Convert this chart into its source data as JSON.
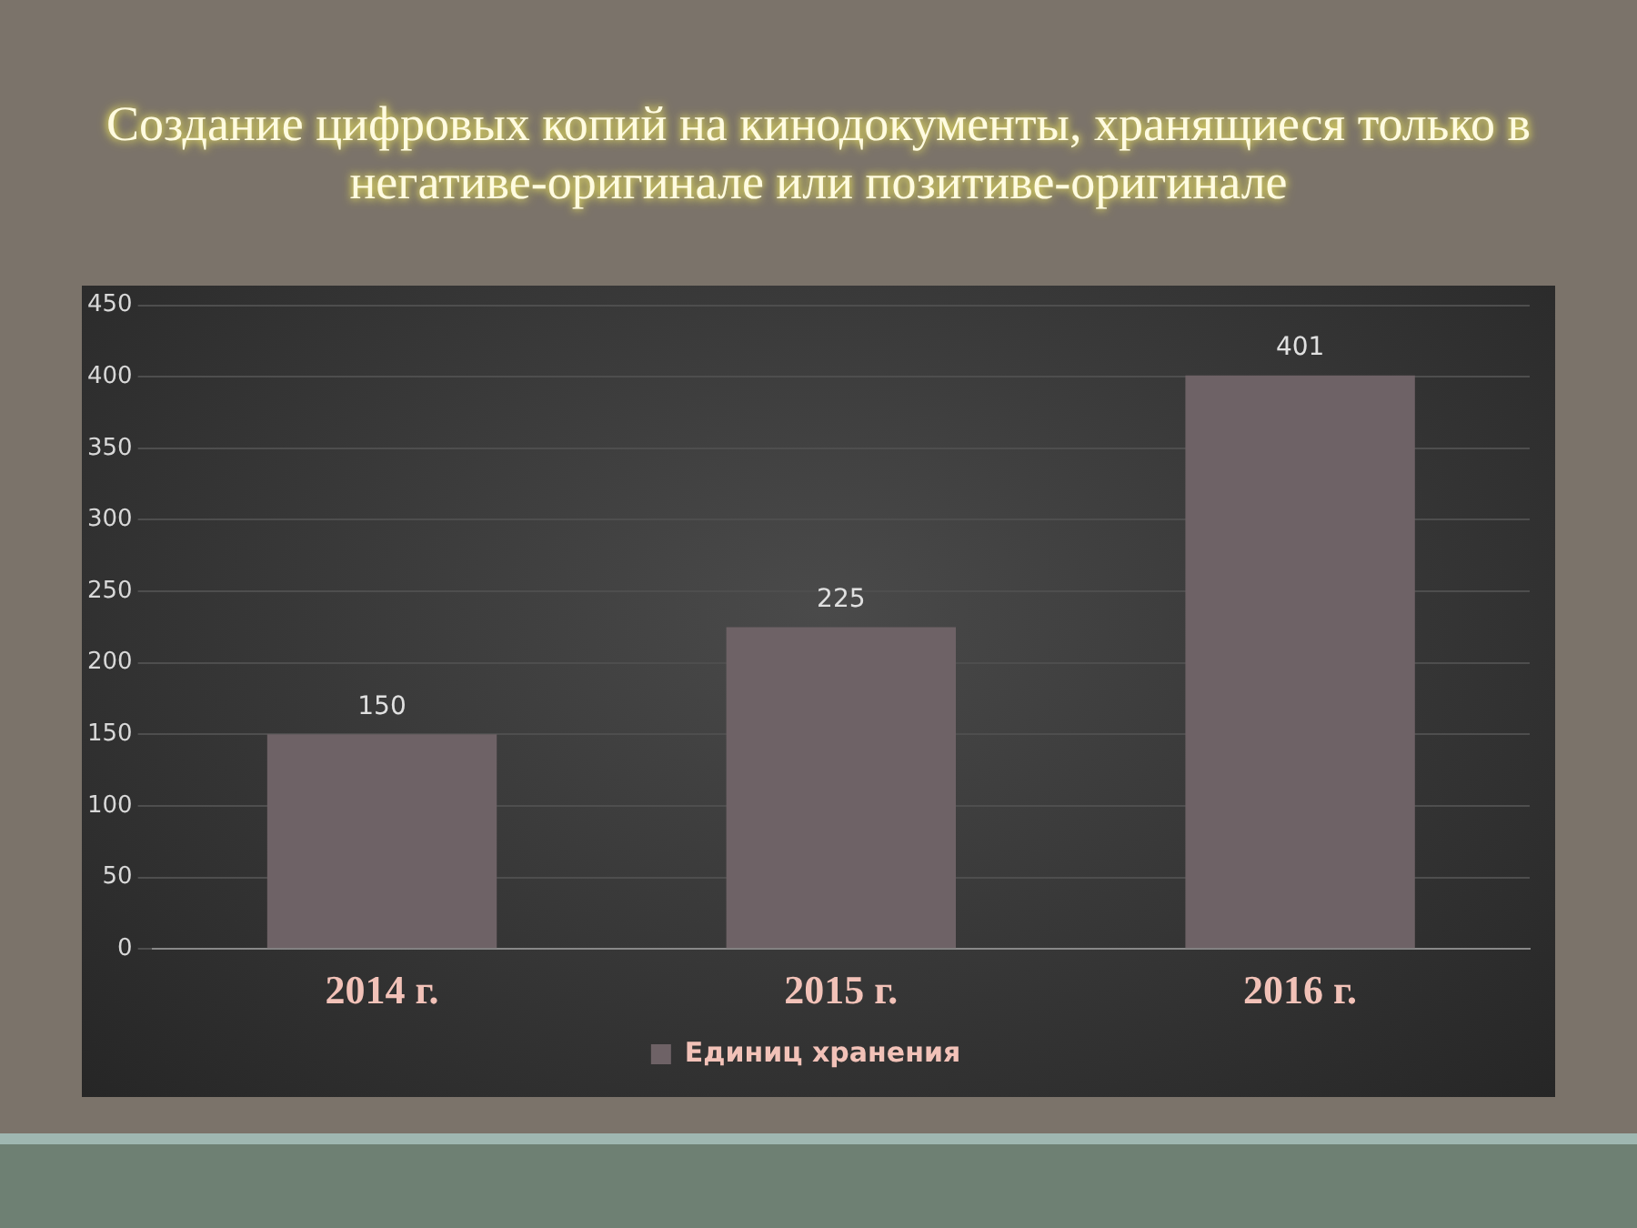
{
  "chart_data": {
    "type": "bar",
    "title": "Создание цифровых копий на кинодокументы, хранящиеся только в негативе-оригинале или позитиве-оригинале",
    "categories": [
      "2014 г.",
      "2015 г.",
      "2016 г."
    ],
    "series": [
      {
        "name": "Единиц хранения",
        "color": "#6e6266",
        "values": [
          150,
          225,
          401
        ]
      }
    ],
    "ylim": [
      0,
      450
    ],
    "yticks": [
      0,
      50,
      100,
      150,
      200,
      250,
      300,
      350,
      400,
      450
    ],
    "grid": "y",
    "legend": "bottom",
    "data_labels": true
  }
}
